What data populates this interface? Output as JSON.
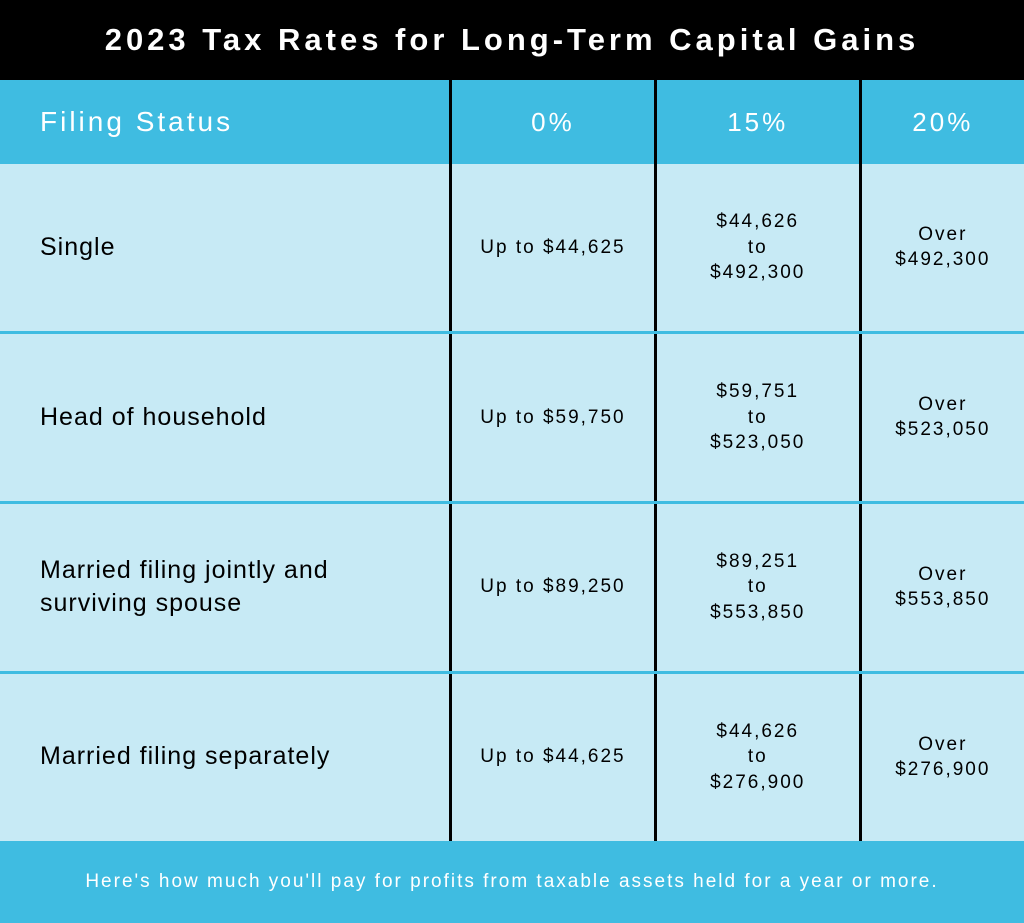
{
  "title": "2023 Tax Rates for Long-Term Capital Gains",
  "colors": {
    "title_bg": "#000000",
    "title_text": "#ffffff",
    "header_bg": "#3fbce1",
    "header_text": "#ffffff",
    "row_bg": "#c7eaf5",
    "row_text": "#000000",
    "row_divider": "#3fbce1",
    "col_divider": "#000000",
    "footer_bg": "#3fbce1",
    "footer_text": "#ffffff"
  },
  "table": {
    "type": "table",
    "columns": [
      "Filing Status",
      "0%",
      "15%",
      "20%"
    ],
    "column_widths_pct": [
      44,
      20,
      20,
      16
    ],
    "rows": [
      {
        "status": "Single",
        "rate0": "Up to $44,625",
        "rate15": "$44,626\nto\n$492,300",
        "rate20": "Over\n$492,300"
      },
      {
        "status": "Head of household",
        "rate0": "Up to $59,750",
        "rate15": "$59,751\nto\n$523,050",
        "rate20": "Over\n$523,050"
      },
      {
        "status": "Married filing jointly and surviving spouse",
        "rate0": "Up to $89,250",
        "rate15": "$89,251\nto\n$553,850",
        "rate20": "Over\n$553,850"
      },
      {
        "status": "Married filing separately",
        "rate0": "Up to $44,625",
        "rate15": "$44,626\nto\n$276,900",
        "rate20": "Over\n$276,900"
      }
    ]
  },
  "footer": "Here's how much you'll pay for profits from taxable assets held for a year or more.",
  "typography": {
    "title_fontsize": 31,
    "title_letter_spacing": 4,
    "header_fontsize": 26,
    "header_letter_spacing": 3,
    "status_fontsize": 25,
    "cell_fontsize": 19,
    "cell_letter_spacing": 2,
    "footer_fontsize": 19
  }
}
